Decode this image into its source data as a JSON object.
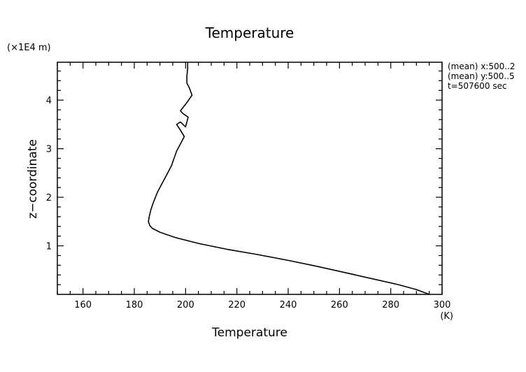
{
  "chart_data": {
    "type": "line",
    "title": "Temperature",
    "xlabel": "Temperature",
    "xunits": "(K)",
    "ylabel": "z−coordinate",
    "yunits": "(×1E4 m)",
    "xlim": [
      150,
      300
    ],
    "ylim": [
      0,
      4.78
    ],
    "xticks": [
      160,
      180,
      200,
      220,
      240,
      260,
      280,
      300
    ],
    "yticks": [
      1,
      2,
      3,
      4
    ],
    "annotations": [
      "(mean) x:500..2",
      "(mean) y:500..5",
      "t=507600 sec"
    ],
    "series": [
      {
        "name": "Temperature",
        "x": [
          295.0,
          290.0,
          283.0,
          273.0,
          262.0,
          251.0,
          240.0,
          228.0,
          216.0,
          205.0,
          196.0,
          190.0,
          187.0,
          186.0,
          185.5,
          185.8,
          186.5,
          187.5,
          189.0,
          191.0,
          193.0,
          194.5,
          195.5,
          196.5,
          198.0,
          199.5,
          198.0,
          196.5,
          198.0,
          200.0,
          201.0,
          199.0,
          198.0,
          200.5,
          202.5,
          201.5,
          200.5,
          200.5,
          200.8,
          200.8
        ],
        "y": [
          0.0,
          0.1,
          0.2,
          0.32,
          0.45,
          0.58,
          0.7,
          0.82,
          0.93,
          1.05,
          1.17,
          1.28,
          1.36,
          1.42,
          1.5,
          1.6,
          1.75,
          1.9,
          2.1,
          2.3,
          2.5,
          2.65,
          2.8,
          2.95,
          3.1,
          3.25,
          3.38,
          3.5,
          3.55,
          3.45,
          3.65,
          3.72,
          3.78,
          3.95,
          4.1,
          4.25,
          4.35,
          4.5,
          4.65,
          4.77
        ]
      }
    ]
  }
}
